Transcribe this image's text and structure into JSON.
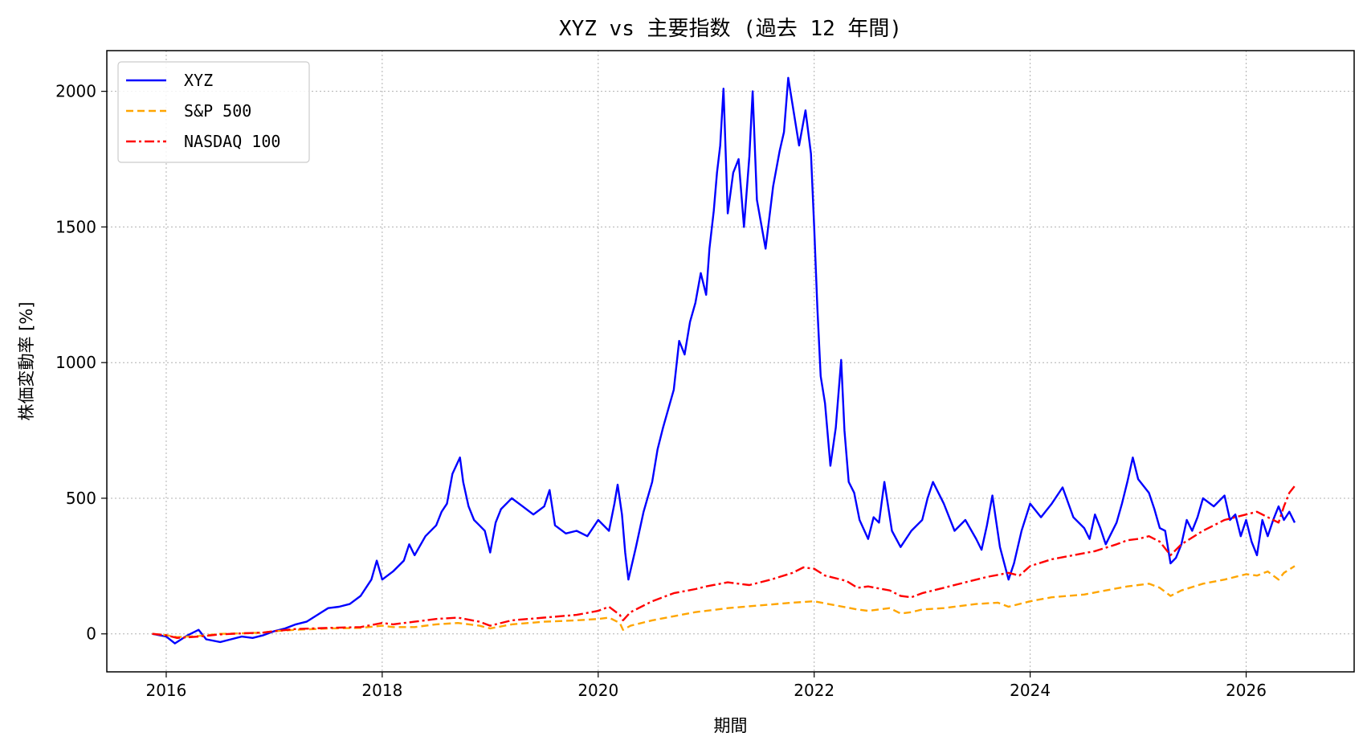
{
  "chart_data": {
    "type": "line",
    "title": "XYZ vs 主要指数 (過去 12 年間)",
    "xlabel": "期間",
    "ylabel": "株価変動率 [%]",
    "xlim": [
      2015.45,
      2027.0
    ],
    "ylim": [
      -140,
      2150
    ],
    "xticks": [
      2016,
      2018,
      2020,
      2022,
      2024,
      2026
    ],
    "xtick_labels": [
      "2016",
      "2018",
      "2020",
      "2022",
      "2024",
      "2026"
    ],
    "yticks": [
      0,
      500,
      1000,
      1500,
      2000
    ],
    "ytick_labels": [
      "0",
      "500",
      "1000",
      "1500",
      "2000"
    ],
    "grid": true,
    "legend": {
      "position": "top-left"
    },
    "series": [
      {
        "name": "XYZ",
        "color": "#0000ff",
        "style": "solid",
        "points": [
          [
            2015.87,
            0
          ],
          [
            2016.0,
            -10
          ],
          [
            2016.08,
            -35
          ],
          [
            2016.2,
            -5
          ],
          [
            2016.3,
            15
          ],
          [
            2016.37,
            -20
          ],
          [
            2016.5,
            -30
          ],
          [
            2016.6,
            -20
          ],
          [
            2016.7,
            -10
          ],
          [
            2016.8,
            -15
          ],
          [
            2016.9,
            -5
          ],
          [
            2017.0,
            10
          ],
          [
            2017.1,
            20
          ],
          [
            2017.2,
            35
          ],
          [
            2017.3,
            45
          ],
          [
            2017.4,
            70
          ],
          [
            2017.5,
            95
          ],
          [
            2017.6,
            100
          ],
          [
            2017.7,
            110
          ],
          [
            2017.8,
            140
          ],
          [
            2017.9,
            200
          ],
          [
            2017.95,
            270
          ],
          [
            2018.0,
            200
          ],
          [
            2018.1,
            230
          ],
          [
            2018.2,
            270
          ],
          [
            2018.25,
            330
          ],
          [
            2018.3,
            290
          ],
          [
            2018.4,
            360
          ],
          [
            2018.5,
            400
          ],
          [
            2018.55,
            450
          ],
          [
            2018.6,
            480
          ],
          [
            2018.65,
            590
          ],
          [
            2018.72,
            650
          ],
          [
            2018.75,
            560
          ],
          [
            2018.8,
            470
          ],
          [
            2018.85,
            420
          ],
          [
            2018.9,
            400
          ],
          [
            2018.95,
            380
          ],
          [
            2019.0,
            300
          ],
          [
            2019.05,
            410
          ],
          [
            2019.1,
            460
          ],
          [
            2019.2,
            500
          ],
          [
            2019.3,
            470
          ],
          [
            2019.4,
            440
          ],
          [
            2019.5,
            470
          ],
          [
            2019.55,
            530
          ],
          [
            2019.6,
            400
          ],
          [
            2019.7,
            370
          ],
          [
            2019.8,
            380
          ],
          [
            2019.9,
            360
          ],
          [
            2020.0,
            420
          ],
          [
            2020.1,
            380
          ],
          [
            2020.15,
            480
          ],
          [
            2020.18,
            550
          ],
          [
            2020.22,
            440
          ],
          [
            2020.25,
            300
          ],
          [
            2020.28,
            200
          ],
          [
            2020.35,
            320
          ],
          [
            2020.42,
            450
          ],
          [
            2020.5,
            560
          ],
          [
            2020.55,
            680
          ],
          [
            2020.6,
            760
          ],
          [
            2020.65,
            830
          ],
          [
            2020.7,
            900
          ],
          [
            2020.75,
            1080
          ],
          [
            2020.8,
            1030
          ],
          [
            2020.85,
            1150
          ],
          [
            2020.9,
            1220
          ],
          [
            2020.95,
            1330
          ],
          [
            2021.0,
            1250
          ],
          [
            2021.03,
            1420
          ],
          [
            2021.07,
            1560
          ],
          [
            2021.1,
            1700
          ],
          [
            2021.13,
            1800
          ],
          [
            2021.16,
            2010
          ],
          [
            2021.2,
            1550
          ],
          [
            2021.25,
            1700
          ],
          [
            2021.3,
            1750
          ],
          [
            2021.35,
            1500
          ],
          [
            2021.4,
            1760
          ],
          [
            2021.43,
            2000
          ],
          [
            2021.47,
            1600
          ],
          [
            2021.55,
            1420
          ],
          [
            2021.62,
            1650
          ],
          [
            2021.68,
            1780
          ],
          [
            2021.72,
            1850
          ],
          [
            2021.76,
            2050
          ],
          [
            2021.8,
            1950
          ],
          [
            2021.86,
            1800
          ],
          [
            2021.92,
            1930
          ],
          [
            2021.97,
            1770
          ],
          [
            2022.0,
            1500
          ],
          [
            2022.03,
            1200
          ],
          [
            2022.06,
            950
          ],
          [
            2022.1,
            850
          ],
          [
            2022.15,
            620
          ],
          [
            2022.2,
            760
          ],
          [
            2022.25,
            1010
          ],
          [
            2022.28,
            750
          ],
          [
            2022.32,
            560
          ],
          [
            2022.37,
            520
          ],
          [
            2022.42,
            420
          ],
          [
            2022.5,
            350
          ],
          [
            2022.55,
            430
          ],
          [
            2022.6,
            410
          ],
          [
            2022.65,
            560
          ],
          [
            2022.72,
            380
          ],
          [
            2022.8,
            320
          ],
          [
            2022.9,
            380
          ],
          [
            2023.0,
            420
          ],
          [
            2023.05,
            500
          ],
          [
            2023.1,
            560
          ],
          [
            2023.2,
            480
          ],
          [
            2023.3,
            380
          ],
          [
            2023.4,
            420
          ],
          [
            2023.5,
            350
          ],
          [
            2023.55,
            310
          ],
          [
            2023.6,
            400
          ],
          [
            2023.65,
            510
          ],
          [
            2023.72,
            320
          ],
          [
            2023.8,
            200
          ],
          [
            2023.85,
            260
          ],
          [
            2023.92,
            380
          ],
          [
            2024.0,
            480
          ],
          [
            2024.1,
            430
          ],
          [
            2024.2,
            480
          ],
          [
            2024.3,
            540
          ],
          [
            2024.4,
            430
          ],
          [
            2024.5,
            390
          ],
          [
            2024.55,
            350
          ],
          [
            2024.6,
            440
          ],
          [
            2024.65,
            390
          ],
          [
            2024.7,
            330
          ],
          [
            2024.8,
            410
          ],
          [
            2024.85,
            480
          ],
          [
            2024.9,
            560
          ],
          [
            2024.95,
            650
          ],
          [
            2025.0,
            570
          ],
          [
            2025.1,
            520
          ],
          [
            2025.15,
            460
          ],
          [
            2025.2,
            390
          ],
          [
            2025.25,
            380
          ],
          [
            2025.3,
            260
          ],
          [
            2025.35,
            280
          ],
          [
            2025.4,
            330
          ],
          [
            2025.45,
            420
          ],
          [
            2025.5,
            380
          ],
          [
            2025.55,
            430
          ],
          [
            2025.6,
            500
          ],
          [
            2025.7,
            470
          ],
          [
            2025.8,
            510
          ],
          [
            2025.85,
            420
          ],
          [
            2025.9,
            440
          ],
          [
            2025.95,
            360
          ],
          [
            2026.0,
            420
          ],
          [
            2026.05,
            340
          ],
          [
            2026.1,
            290
          ],
          [
            2026.15,
            420
          ],
          [
            2026.2,
            360
          ],
          [
            2026.25,
            420
          ],
          [
            2026.3,
            470
          ],
          [
            2026.35,
            420
          ],
          [
            2026.4,
            450
          ],
          [
            2026.45,
            410
          ]
        ]
      },
      {
        "name": "S&P 500",
        "color": "#ffa500",
        "style": "dashed",
        "points": [
          [
            2015.87,
            0
          ],
          [
            2016.0,
            -5
          ],
          [
            2016.1,
            -12
          ],
          [
            2016.3,
            -8
          ],
          [
            2016.5,
            0
          ],
          [
            2016.7,
            2
          ],
          [
            2016.9,
            5
          ],
          [
            2017.0,
            10
          ],
          [
            2017.2,
            15
          ],
          [
            2017.5,
            20
          ],
          [
            2017.8,
            22
          ],
          [
            2018.0,
            30
          ],
          [
            2018.1,
            25
          ],
          [
            2018.3,
            25
          ],
          [
            2018.5,
            35
          ],
          [
            2018.7,
            40
          ],
          [
            2018.9,
            30
          ],
          [
            2019.0,
            20
          ],
          [
            2019.2,
            35
          ],
          [
            2019.5,
            45
          ],
          [
            2019.8,
            50
          ],
          [
            2020.0,
            55
          ],
          [
            2020.1,
            60
          ],
          [
            2020.2,
            40
          ],
          [
            2020.23,
            15
          ],
          [
            2020.3,
            30
          ],
          [
            2020.5,
            50
          ],
          [
            2020.7,
            65
          ],
          [
            2020.9,
            80
          ],
          [
            2021.0,
            85
          ],
          [
            2021.2,
            95
          ],
          [
            2021.5,
            105
          ],
          [
            2021.8,
            115
          ],
          [
            2022.0,
            120
          ],
          [
            2022.2,
            105
          ],
          [
            2022.4,
            90
          ],
          [
            2022.5,
            85
          ],
          [
            2022.7,
            95
          ],
          [
            2022.8,
            75
          ],
          [
            2022.9,
            80
          ],
          [
            2023.0,
            90
          ],
          [
            2023.2,
            95
          ],
          [
            2023.5,
            110
          ],
          [
            2023.7,
            115
          ],
          [
            2023.8,
            100
          ],
          [
            2024.0,
            120
          ],
          [
            2024.2,
            135
          ],
          [
            2024.5,
            145
          ],
          [
            2024.7,
            160
          ],
          [
            2024.9,
            175
          ],
          [
            2025.0,
            180
          ],
          [
            2025.1,
            185
          ],
          [
            2025.2,
            170
          ],
          [
            2025.3,
            140
          ],
          [
            2025.4,
            160
          ],
          [
            2025.6,
            185
          ],
          [
            2025.8,
            200
          ],
          [
            2026.0,
            220
          ],
          [
            2026.1,
            215
          ],
          [
            2026.2,
            230
          ],
          [
            2026.3,
            200
          ],
          [
            2026.35,
            225
          ],
          [
            2026.45,
            250
          ]
        ]
      },
      {
        "name": "NASDAQ 100",
        "color": "#ff0000",
        "style": "dashdot",
        "points": [
          [
            2015.87,
            0
          ],
          [
            2016.0,
            -5
          ],
          [
            2016.1,
            -15
          ],
          [
            2016.3,
            -10
          ],
          [
            2016.5,
            -2
          ],
          [
            2016.7,
            2
          ],
          [
            2016.9,
            5
          ],
          [
            2017.0,
            10
          ],
          [
            2017.2,
            18
          ],
          [
            2017.5,
            22
          ],
          [
            2017.8,
            25
          ],
          [
            2018.0,
            40
          ],
          [
            2018.1,
            35
          ],
          [
            2018.3,
            45
          ],
          [
            2018.5,
            55
          ],
          [
            2018.7,
            60
          ],
          [
            2018.9,
            45
          ],
          [
            2019.0,
            30
          ],
          [
            2019.2,
            50
          ],
          [
            2019.5,
            60
          ],
          [
            2019.8,
            70
          ],
          [
            2020.0,
            85
          ],
          [
            2020.1,
            100
          ],
          [
            2020.2,
            70
          ],
          [
            2020.23,
            50
          ],
          [
            2020.3,
            80
          ],
          [
            2020.5,
            120
          ],
          [
            2020.7,
            150
          ],
          [
            2020.9,
            165
          ],
          [
            2021.0,
            175
          ],
          [
            2021.2,
            190
          ],
          [
            2021.4,
            180
          ],
          [
            2021.6,
            200
          ],
          [
            2021.8,
            225
          ],
          [
            2021.9,
            245
          ],
          [
            2022.0,
            240
          ],
          [
            2022.1,
            215
          ],
          [
            2022.3,
            195
          ],
          [
            2022.4,
            170
          ],
          [
            2022.5,
            175
          ],
          [
            2022.7,
            160
          ],
          [
            2022.8,
            140
          ],
          [
            2022.9,
            135
          ],
          [
            2023.0,
            150
          ],
          [
            2023.2,
            170
          ],
          [
            2023.4,
            190
          ],
          [
            2023.6,
            210
          ],
          [
            2023.8,
            225
          ],
          [
            2023.9,
            215
          ],
          [
            2024.0,
            250
          ],
          [
            2024.2,
            275
          ],
          [
            2024.4,
            290
          ],
          [
            2024.6,
            305
          ],
          [
            2024.8,
            330
          ],
          [
            2024.9,
            345
          ],
          [
            2025.0,
            350
          ],
          [
            2025.1,
            360
          ],
          [
            2025.2,
            340
          ],
          [
            2025.3,
            290
          ],
          [
            2025.4,
            330
          ],
          [
            2025.6,
            380
          ],
          [
            2025.8,
            420
          ],
          [
            2026.0,
            440
          ],
          [
            2026.1,
            450
          ],
          [
            2026.2,
            430
          ],
          [
            2026.3,
            410
          ],
          [
            2026.35,
            470
          ],
          [
            2026.4,
            520
          ],
          [
            2026.45,
            545
          ]
        ]
      }
    ]
  }
}
